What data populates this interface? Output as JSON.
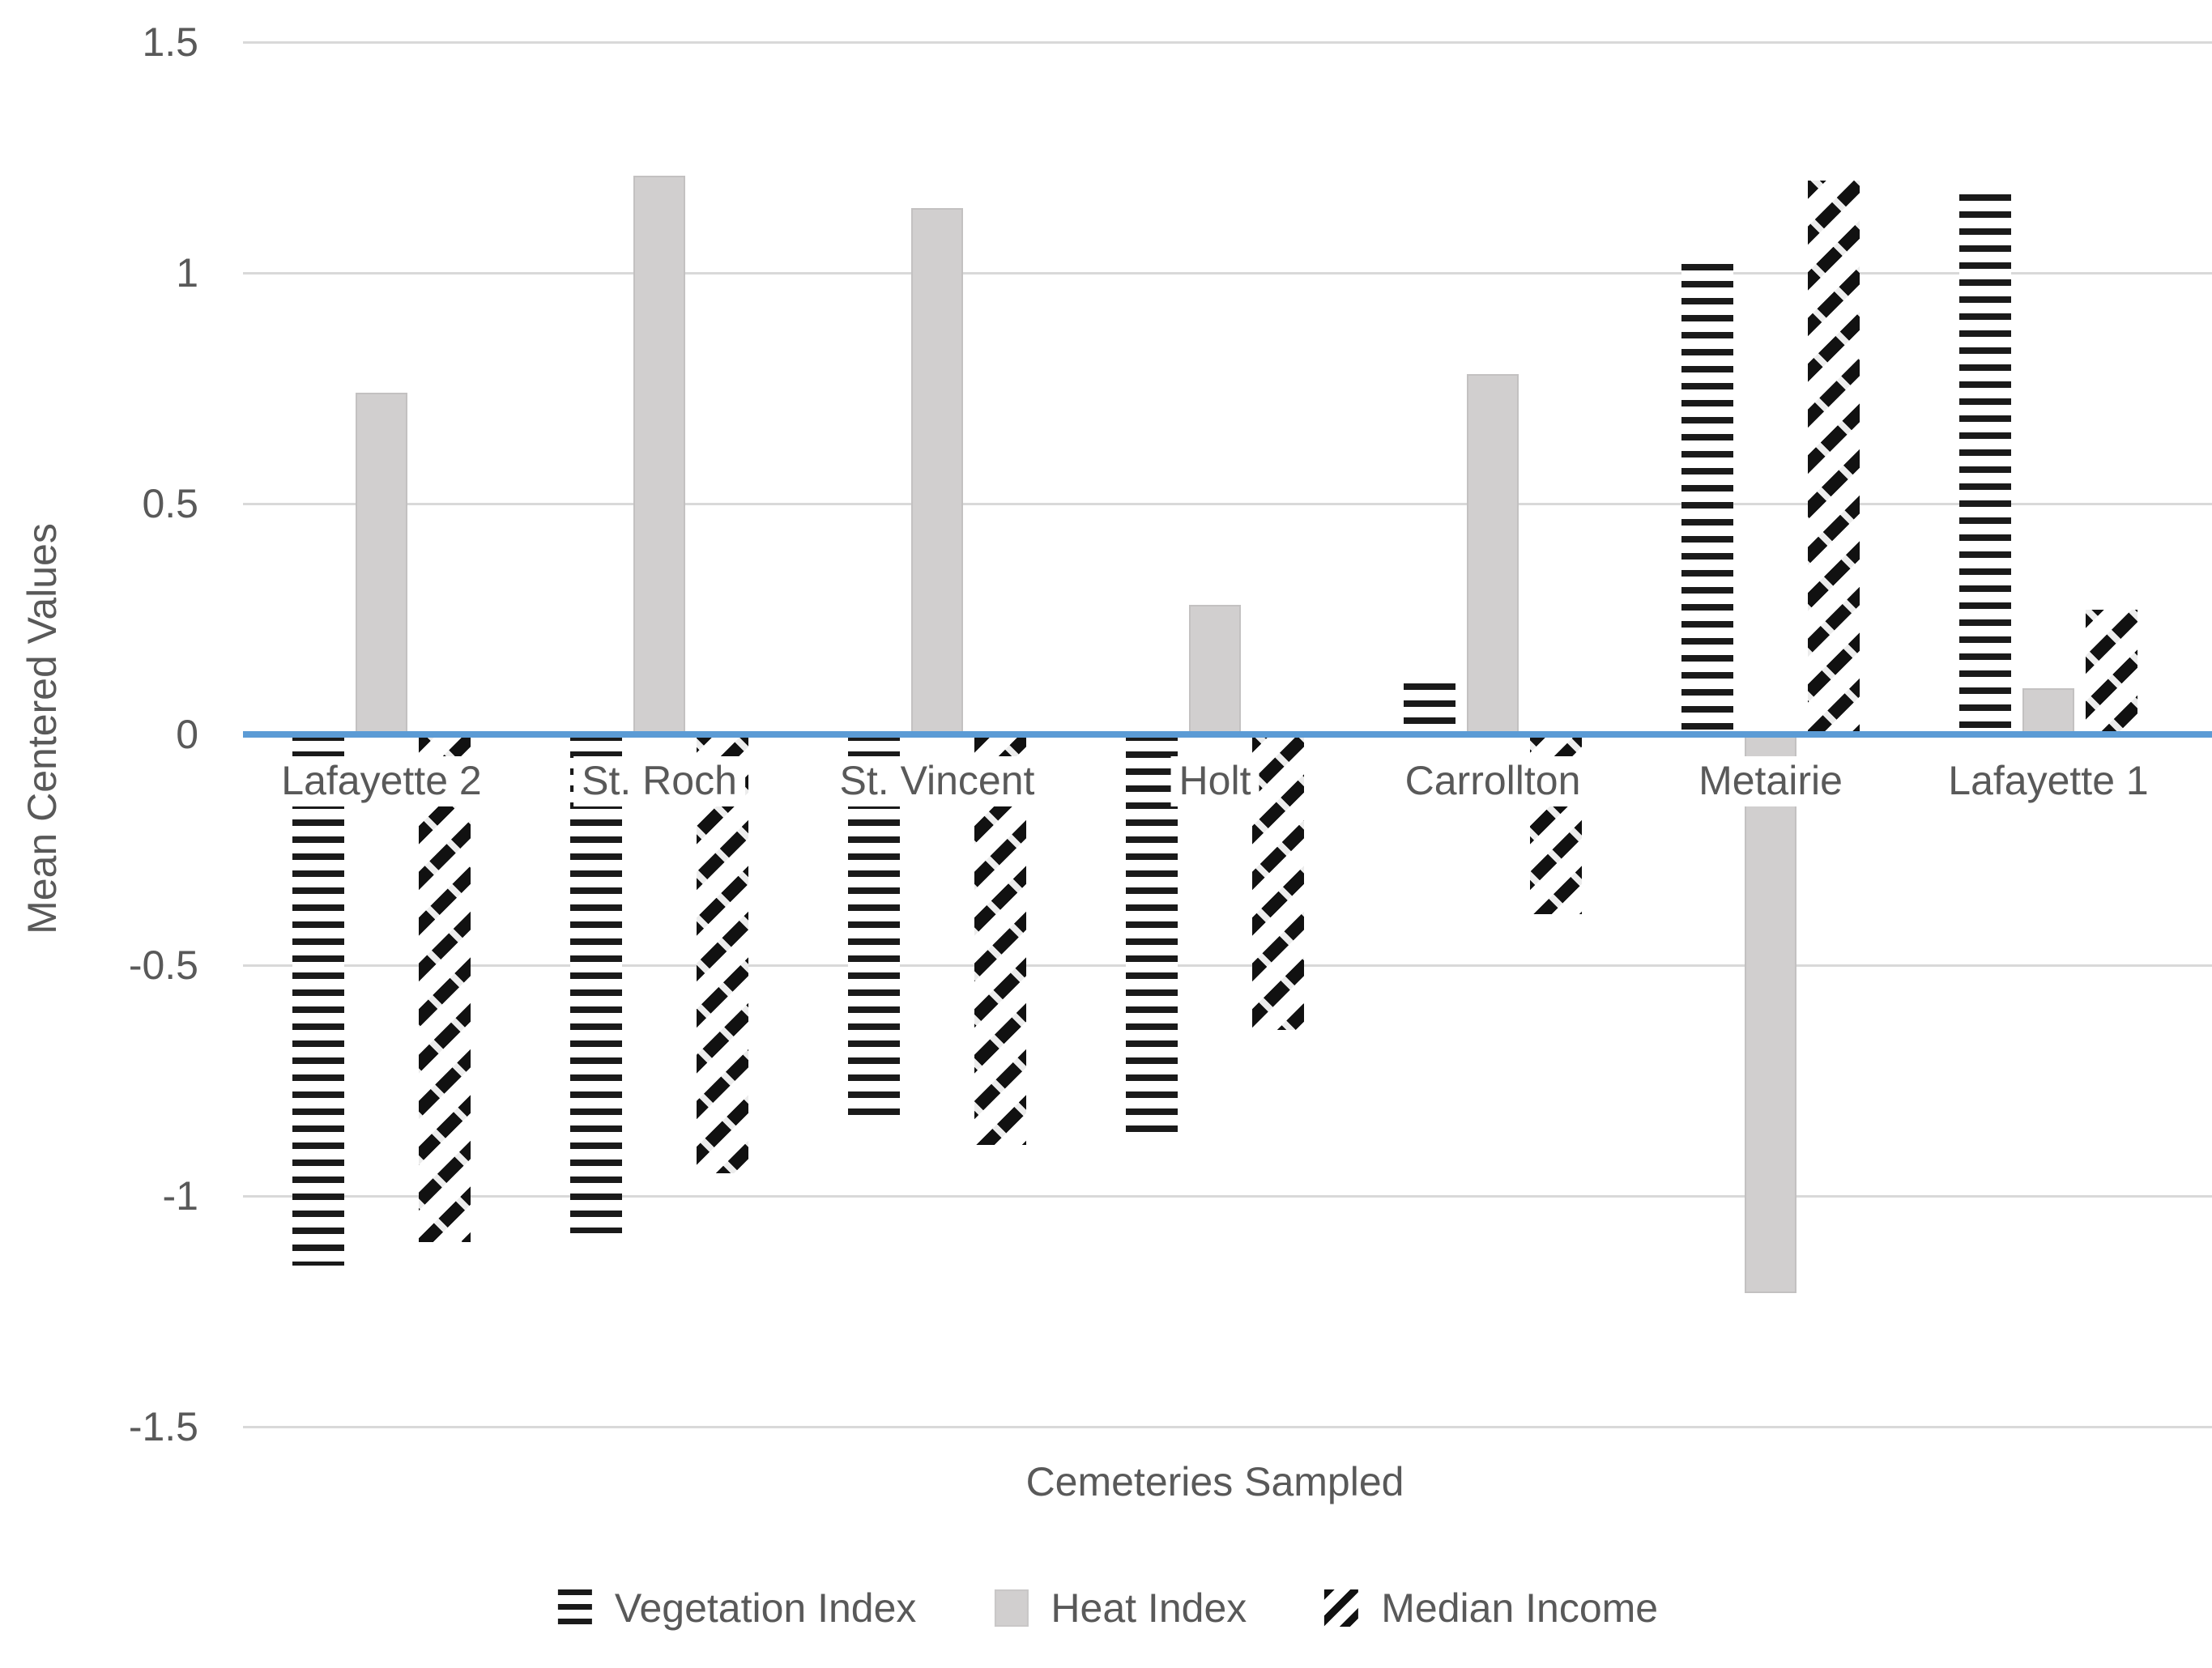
{
  "chart_data": {
    "type": "bar",
    "title": "",
    "xlabel": "Cemeteries Sampled",
    "ylabel": "Mean Centered Values",
    "categories": [
      "Lafayette 2",
      "St. Roch",
      "St. Vincent",
      "Holt",
      "Carrollton",
      "Metairie",
      "Lafayette 1"
    ],
    "series": [
      {
        "name": "Vegetation Index",
        "style": "horizontal-stripes",
        "values": [
          -1.15,
          -1.08,
          -0.83,
          -0.87,
          0.11,
          1.02,
          1.17
        ]
      },
      {
        "name": "Heat Index",
        "style": "solid",
        "color": "#d1cfcf",
        "values": [
          0.74,
          1.21,
          1.14,
          0.28,
          0.78,
          -1.21,
          0.1
        ]
      },
      {
        "name": "Median Income",
        "style": "diagonal-stripes",
        "values": [
          -1.1,
          -0.95,
          -0.89,
          -0.64,
          -0.39,
          1.2,
          0.27
        ]
      }
    ],
    "y_ticks": [
      "1.5",
      "1",
      "0.5",
      "0",
      "-0.5",
      "-1",
      "-1.5"
    ],
    "ylim": [
      -1.5,
      1.5
    ],
    "grid": true,
    "legend_position": "bottom",
    "zero_line": true,
    "colors": {
      "zero_line": "#5b9bd5",
      "gridline": "#d9d9d9",
      "text": "#595959",
      "pattern_ink": "#1a1a1a",
      "heat_fill": "#d1cfcf",
      "background": "#ffffff"
    }
  }
}
